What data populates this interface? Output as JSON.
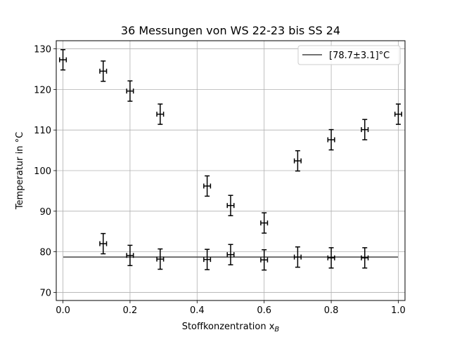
{
  "chart_data": {
    "type": "scatter",
    "title": "36 Messungen von WS 22-23 bis SS 24",
    "xlabel": "Stoffkonzentration x",
    "xlabel_sub": "B",
    "ylabel": "Temperatur in °C",
    "xlim": [
      -0.02,
      1.02
    ],
    "ylim": [
      68,
      132
    ],
    "x_ticks": [
      {
        "value": 0.0,
        "label": "0.0"
      },
      {
        "value": 0.2,
        "label": "0.2"
      },
      {
        "value": 0.4,
        "label": "0.4"
      },
      {
        "value": 0.6,
        "label": "0.6"
      },
      {
        "value": 0.8,
        "label": "0.8"
      },
      {
        "value": 1.0,
        "label": "1.0"
      }
    ],
    "y_ticks": [
      {
        "value": 70,
        "label": "70"
      },
      {
        "value": 80,
        "label": "80"
      },
      {
        "value": 90,
        "label": "90"
      },
      {
        "value": 100,
        "label": "100"
      },
      {
        "value": 110,
        "label": "110"
      },
      {
        "value": 120,
        "label": "120"
      },
      {
        "value": 130,
        "label": "130"
      }
    ],
    "grid": true,
    "legend_position": "top-right",
    "reference_line": {
      "y": 78.7,
      "label": "[78.7±3.1]°C",
      "color": "#444444"
    },
    "error_bars": {
      "x_err": 0.01,
      "y_err": 2.5
    },
    "series": [
      {
        "color": "#000000",
        "points": [
          {
            "x": 0.0,
            "y": 127.3
          },
          {
            "x": 0.12,
            "y": 124.5
          },
          {
            "x": 0.2,
            "y": 119.6
          },
          {
            "x": 0.29,
            "y": 113.9
          },
          {
            "x": 0.43,
            "y": 96.2
          },
          {
            "x": 0.5,
            "y": 91.4
          },
          {
            "x": 0.6,
            "y": 87.1
          },
          {
            "x": 0.7,
            "y": 102.4
          },
          {
            "x": 0.8,
            "y": 107.6
          },
          {
            "x": 0.9,
            "y": 110.1
          },
          {
            "x": 1.0,
            "y": 113.9
          },
          {
            "x": 0.12,
            "y": 82.0
          },
          {
            "x": 0.2,
            "y": 79.1
          },
          {
            "x": 0.29,
            "y": 78.2
          },
          {
            "x": 0.43,
            "y": 78.1
          },
          {
            "x": 0.5,
            "y": 79.3
          },
          {
            "x": 0.6,
            "y": 78.0
          },
          {
            "x": 0.7,
            "y": 78.7
          },
          {
            "x": 0.8,
            "y": 78.5
          },
          {
            "x": 0.9,
            "y": 78.5
          }
        ]
      }
    ]
  }
}
